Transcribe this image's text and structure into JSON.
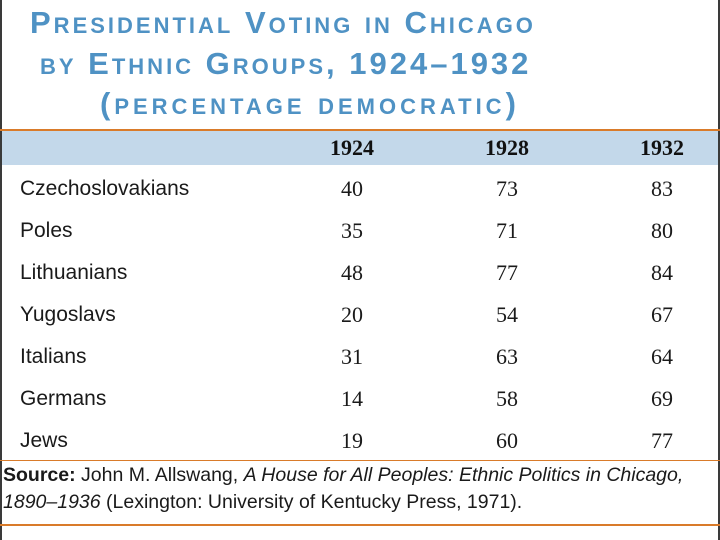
{
  "title": {
    "line1": "Presidential Voting in Chicago",
    "line2": "by Ethnic Groups, 1924–1932",
    "line3": "(percentage democratic)"
  },
  "table": {
    "columns": [
      "1924",
      "1928",
      "1932"
    ],
    "rows": [
      {
        "group": "Czechoslovakians",
        "values": [
          "40",
          "73",
          "83"
        ]
      },
      {
        "group": "Poles",
        "values": [
          "35",
          "71",
          "80"
        ]
      },
      {
        "group": "Lithuanians",
        "values": [
          "48",
          "77",
          "84"
        ]
      },
      {
        "group": "Yugoslavs",
        "values": [
          "20",
          "54",
          "67"
        ]
      },
      {
        "group": "Italians",
        "values": [
          "31",
          "63",
          "64"
        ]
      },
      {
        "group": "Germans",
        "values": [
          "14",
          "58",
          "69"
        ]
      },
      {
        "group": "Jews",
        "values": [
          "19",
          "60",
          "77"
        ]
      }
    ]
  },
  "source": {
    "label": "Source:",
    "author": " John M. Allswang, ",
    "book": "A House for All Peoples: Ethnic Politics in Chicago, 1890–1936",
    "publisher": " (Lexington: University of Kentucky Press, 1971)."
  },
  "colors": {
    "title": "#4f92c4",
    "header_band": "#c3d8ea",
    "rule": "#d97b2a"
  }
}
